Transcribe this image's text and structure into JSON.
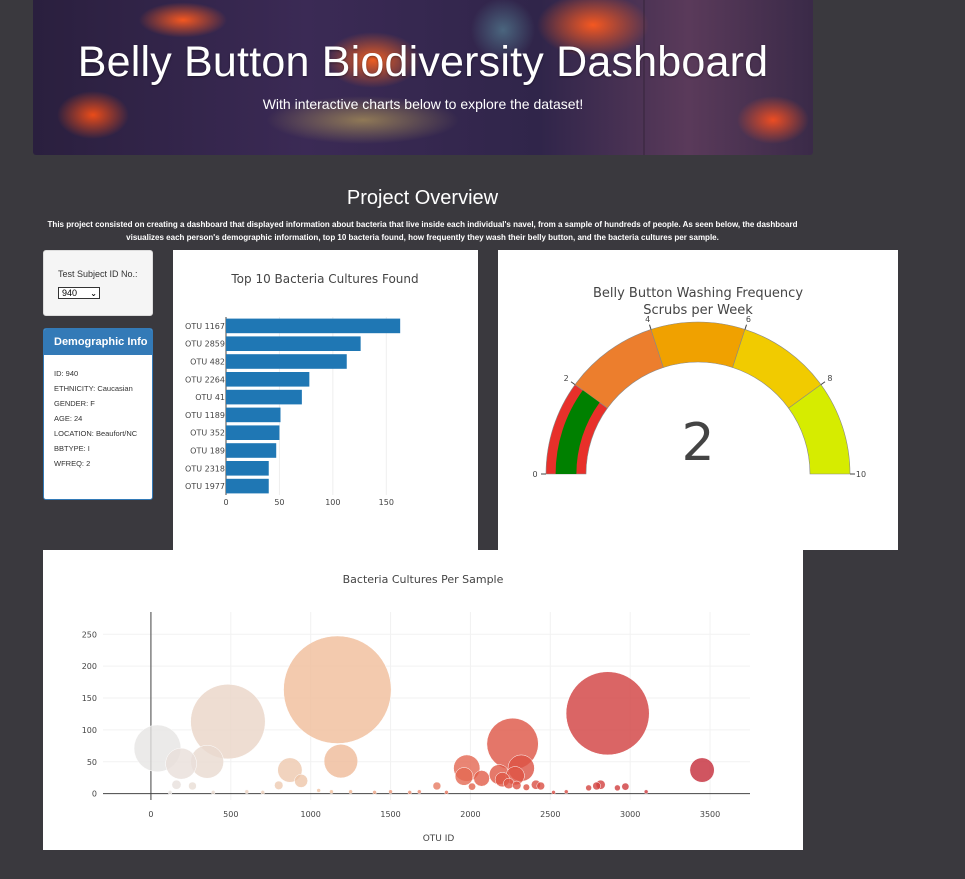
{
  "header": {
    "title": "Belly Button Biodiversity Dashboard",
    "subtitle": "With interactive charts below to explore the dataset!"
  },
  "overview": {
    "title": "Project Overview",
    "text": "This project consisted on creating a dashboard that displayed information about bacteria that live inside each individual's navel, from a sample of hundreds of people. As seen below, the dashboard visualizes each person's demographic information, top 10 bacteria found, how frequently they wash their belly button, and the bacteria cultures per sample."
  },
  "selector": {
    "label": "Test Subject ID No.:",
    "value": "940"
  },
  "demographics": {
    "title": "Demographic Info",
    "rows": [
      "ID: 940",
      "ETHNICITY: Caucasian",
      "GENDER: F",
      "AGE: 24",
      "LOCATION: Beaufort/NC",
      "BBTYPE: I",
      "WFREQ: 2"
    ]
  },
  "chart_data": [
    {
      "type": "bar",
      "orientation": "horizontal",
      "title": "Top 10 Bacteria Cultures Found",
      "categories": [
        "OTU 1167",
        "OTU 2859",
        "OTU 482",
        "OTU 2264",
        "OTU 41",
        "OTU 1189",
        "OTU 352",
        "OTU 189",
        "OTU 2318",
        "OTU 1977"
      ],
      "values": [
        163,
        126,
        113,
        78,
        71,
        51,
        50,
        47,
        40,
        40
      ],
      "xlim": [
        0,
        175
      ],
      "xticks": [
        0,
        50,
        100,
        150
      ],
      "color": "#1f77b4",
      "grid": true
    },
    {
      "type": "gauge",
      "title": "Belly Button Washing Frequency",
      "subtitle": "Scrubs per Week",
      "value": 2,
      "range": [
        0,
        10
      ],
      "ticks": [
        0,
        2,
        4,
        6,
        8,
        10
      ],
      "steps": [
        {
          "range": [
            0,
            2
          ],
          "color": "#e8302a"
        },
        {
          "range": [
            2,
            4
          ],
          "color": "#ec7e2d"
        },
        {
          "range": [
            4,
            6
          ],
          "color": "#f0a100"
        },
        {
          "range": [
            6,
            8
          ],
          "color": "#f1cb00"
        },
        {
          "range": [
            8,
            10
          ],
          "color": "#d6ec00"
        }
      ],
      "bar_color": "#008000"
    },
    {
      "type": "scatter",
      "subtype": "bubble",
      "title": "Bacteria Cultures Per Sample",
      "xlabel": "OTU ID",
      "xlim": [
        -300,
        3750
      ],
      "ylim": [
        -10,
        285
      ],
      "xticks": [
        0,
        500,
        1000,
        1500,
        2000,
        2500,
        3000,
        3500
      ],
      "yticks": [
        0,
        50,
        100,
        150,
        200,
        250
      ],
      "colorscale": "Earth",
      "points": [
        {
          "x": 41,
          "y": 71
        },
        {
          "x": 189,
          "y": 47
        },
        {
          "x": 352,
          "y": 50
        },
        {
          "x": 482,
          "y": 113
        },
        {
          "x": 1167,
          "y": 163
        },
        {
          "x": 1189,
          "y": 51
        },
        {
          "x": 870,
          "y": 37
        },
        {
          "x": 940,
          "y": 20
        },
        {
          "x": 1977,
          "y": 40
        },
        {
          "x": 1960,
          "y": 27
        },
        {
          "x": 2264,
          "y": 78
        },
        {
          "x": 2318,
          "y": 40
        },
        {
          "x": 2859,
          "y": 126
        },
        {
          "x": 3450,
          "y": 37
        },
        {
          "x": 2070,
          "y": 24
        },
        {
          "x": 2180,
          "y": 30
        },
        {
          "x": 2200,
          "y": 22
        },
        {
          "x": 2240,
          "y": 16
        },
        {
          "x": 2280,
          "y": 28
        },
        {
          "x": 2290,
          "y": 13
        },
        {
          "x": 2350,
          "y": 10
        },
        {
          "x": 2410,
          "y": 14
        },
        {
          "x": 2440,
          "y": 12
        },
        {
          "x": 2010,
          "y": 11
        },
        {
          "x": 1790,
          "y": 12
        },
        {
          "x": 2740,
          "y": 9
        },
        {
          "x": 2790,
          "y": 12
        },
        {
          "x": 2815,
          "y": 14
        },
        {
          "x": 2920,
          "y": 9
        },
        {
          "x": 2970,
          "y": 11
        },
        {
          "x": 160,
          "y": 14
        },
        {
          "x": 260,
          "y": 12
        },
        {
          "x": 800,
          "y": 13
        },
        {
          "x": 1050,
          "y": 5
        },
        {
          "x": 1250,
          "y": 3
        },
        {
          "x": 1400,
          "y": 2
        },
        {
          "x": 1500,
          "y": 3
        },
        {
          "x": 1620,
          "y": 2
        },
        {
          "x": 1680,
          "y": 3
        },
        {
          "x": 1850,
          "y": 2
        },
        {
          "x": 2600,
          "y": 3
        },
        {
          "x": 3100,
          "y": 3
        },
        {
          "x": 120,
          "y": 2
        },
        {
          "x": 390,
          "y": 2
        },
        {
          "x": 600,
          "y": 3
        },
        {
          "x": 700,
          "y": 2
        },
        {
          "x": 1130,
          "y": 3
        },
        {
          "x": 2520,
          "y": 2
        }
      ]
    }
  ]
}
